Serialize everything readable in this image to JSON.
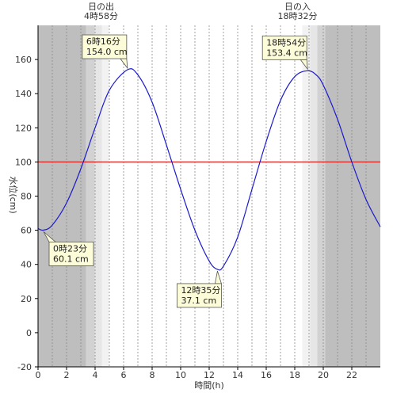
{
  "chart_data": {
    "type": "line",
    "xlabel": "時間(h)",
    "ylabel": "水位(cm)",
    "xlim": [
      0,
      24
    ],
    "ylim": [
      -20,
      180
    ],
    "x_ticks": [
      "0",
      "2",
      "4",
      "6",
      "8",
      "10",
      "12",
      "14",
      "16",
      "18",
      "20",
      "22"
    ],
    "y_ticks": [
      "-20",
      "0",
      "20",
      "40",
      "60",
      "80",
      "100",
      "120",
      "140",
      "160"
    ],
    "reference_line": {
      "y": 100,
      "color": "#dd2222"
    },
    "line_color": "#1a1acc",
    "x_grid": true,
    "series": [
      {
        "x": [
          0,
          0.39,
          1,
          2,
          3,
          4,
          5,
          6.27,
          7,
          8,
          9,
          10,
          11,
          12,
          12.58,
          13,
          14,
          15,
          16,
          17,
          18,
          18.9,
          19.5,
          20,
          21,
          22,
          23,
          24
        ],
        "y": [
          61,
          60.1,
          63,
          76,
          96,
          120,
          142,
          154.0,
          151,
          135,
          110,
          84,
          60,
          42,
          37.1,
          39,
          56,
          84,
          112,
          136,
          150,
          153.4,
          151,
          145,
          125,
          100,
          78,
          62
        ]
      }
    ],
    "annotations": [
      {
        "time": "6時16分",
        "level": "154.0 cm",
        "x": 6.27,
        "y": 154.0
      },
      {
        "time": "18時54分",
        "level": "153.4 cm",
        "x": 18.9,
        "y": 153.4
      },
      {
        "time": "0時23分",
        "level": "60.1 cm",
        "x": 0.39,
        "y": 60.1
      },
      {
        "time": "12時35分",
        "level": "37.1 cm",
        "x": 12.58,
        "y": 37.1
      }
    ],
    "sunrise": {
      "label": "日の出",
      "time": "4時58分",
      "hour": 4.97
    },
    "sunset": {
      "label": "日の入",
      "time": "18時32分",
      "hour": 18.53
    },
    "shading": {
      "night": "#bebebe",
      "twilight1": "#d2d2d2",
      "twilight2": "#e6e6e6",
      "twilight3": "#f2f2f2"
    }
  }
}
